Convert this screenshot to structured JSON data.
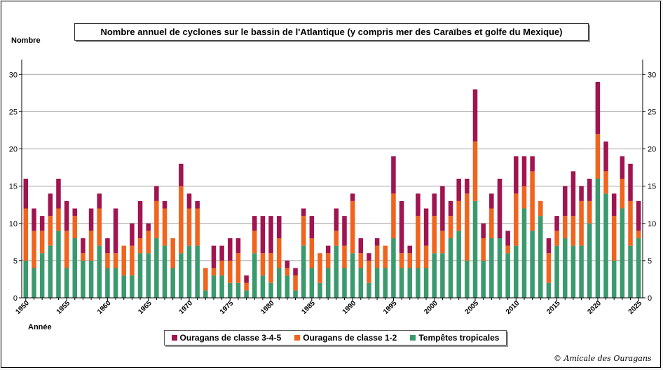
{
  "chart_data": {
    "type": "bar",
    "stacked": true,
    "title": "Nombre annuel de cyclones sur le bassin de l'Atlantique (y compris mer des Caraïbes et golfe du Mexique)",
    "ylabel": "Nombre",
    "xlabel": "Année",
    "ylim": [
      0,
      32
    ],
    "yticks": [
      0,
      5,
      10,
      15,
      20,
      25,
      30
    ],
    "grid": "horizontal",
    "legend_position": "bottom",
    "x_start": 1950,
    "x_end": 2025,
    "xtick_labels": [
      "1950",
      "1955",
      "1960",
      "1965",
      "1970",
      "1975",
      "1980",
      "1985",
      "1990",
      "1995",
      "2000",
      "2005",
      "2010",
      "2015",
      "2020",
      "2025"
    ],
    "series": [
      {
        "name": "Tempêtes tropicales",
        "color": "#3a9a6e",
        "values": [
          5,
          4,
          6,
          7,
          9,
          4,
          8,
          5,
          5,
          7,
          4,
          4,
          3,
          3,
          6,
          6,
          8,
          7,
          4,
          6,
          7,
          7,
          1,
          3,
          3,
          2,
          2,
          1,
          6,
          3,
          2,
          4,
          3,
          1,
          7,
          4,
          2,
          4,
          7,
          4,
          6,
          4,
          2,
          4,
          4,
          8,
          4,
          4,
          4,
          4,
          6,
          6,
          8,
          9,
          5,
          13,
          5,
          8,
          8,
          6,
          7,
          12,
          9,
          11,
          2,
          7,
          8,
          7,
          7,
          10,
          16,
          14,
          5,
          12,
          7,
          8
        ]
      },
      {
        "name": "Ouragans de classe 1-2",
        "color": "#f0641e",
        "values": [
          7,
          5,
          3,
          4,
          3,
          5,
          3,
          1,
          4,
          5,
          2,
          2,
          4,
          4,
          2,
          3,
          5,
          5,
          4,
          9,
          5,
          5,
          3,
          1,
          2,
          3,
          4,
          1,
          3,
          3,
          4,
          4,
          1,
          2,
          4,
          4,
          4,
          2,
          2,
          3,
          7,
          2,
          3,
          3,
          3,
          6,
          2,
          2,
          7,
          3,
          5,
          3,
          3,
          4,
          9,
          8,
          3,
          4,
          0,
          1,
          7,
          3,
          8,
          2,
          4,
          2,
          3,
          4,
          6,
          3,
          6,
          3,
          6,
          4,
          6,
          1
        ]
      },
      {
        "name": "Ouragans de classe 3-4-5",
        "color": "#a01450",
        "values": [
          4,
          3,
          2,
          3,
          4,
          4,
          1,
          2,
          3,
          2,
          2,
          6,
          0,
          3,
          5,
          1,
          2,
          1,
          0,
          3,
          2,
          1,
          0,
          3,
          2,
          3,
          2,
          1,
          2,
          5,
          5,
          3,
          1,
          1,
          1,
          3,
          0,
          1,
          3,
          4,
          1,
          2,
          1,
          1,
          0,
          5,
          7,
          1,
          3,
          5,
          3,
          6,
          2,
          3,
          2,
          7,
          2,
          2,
          8,
          2,
          5,
          4,
          2,
          0,
          2,
          2,
          4,
          6,
          2,
          3,
          7,
          4,
          3,
          3,
          5,
          4
        ]
      }
    ]
  },
  "credit": "© Amicale des Ouragans"
}
